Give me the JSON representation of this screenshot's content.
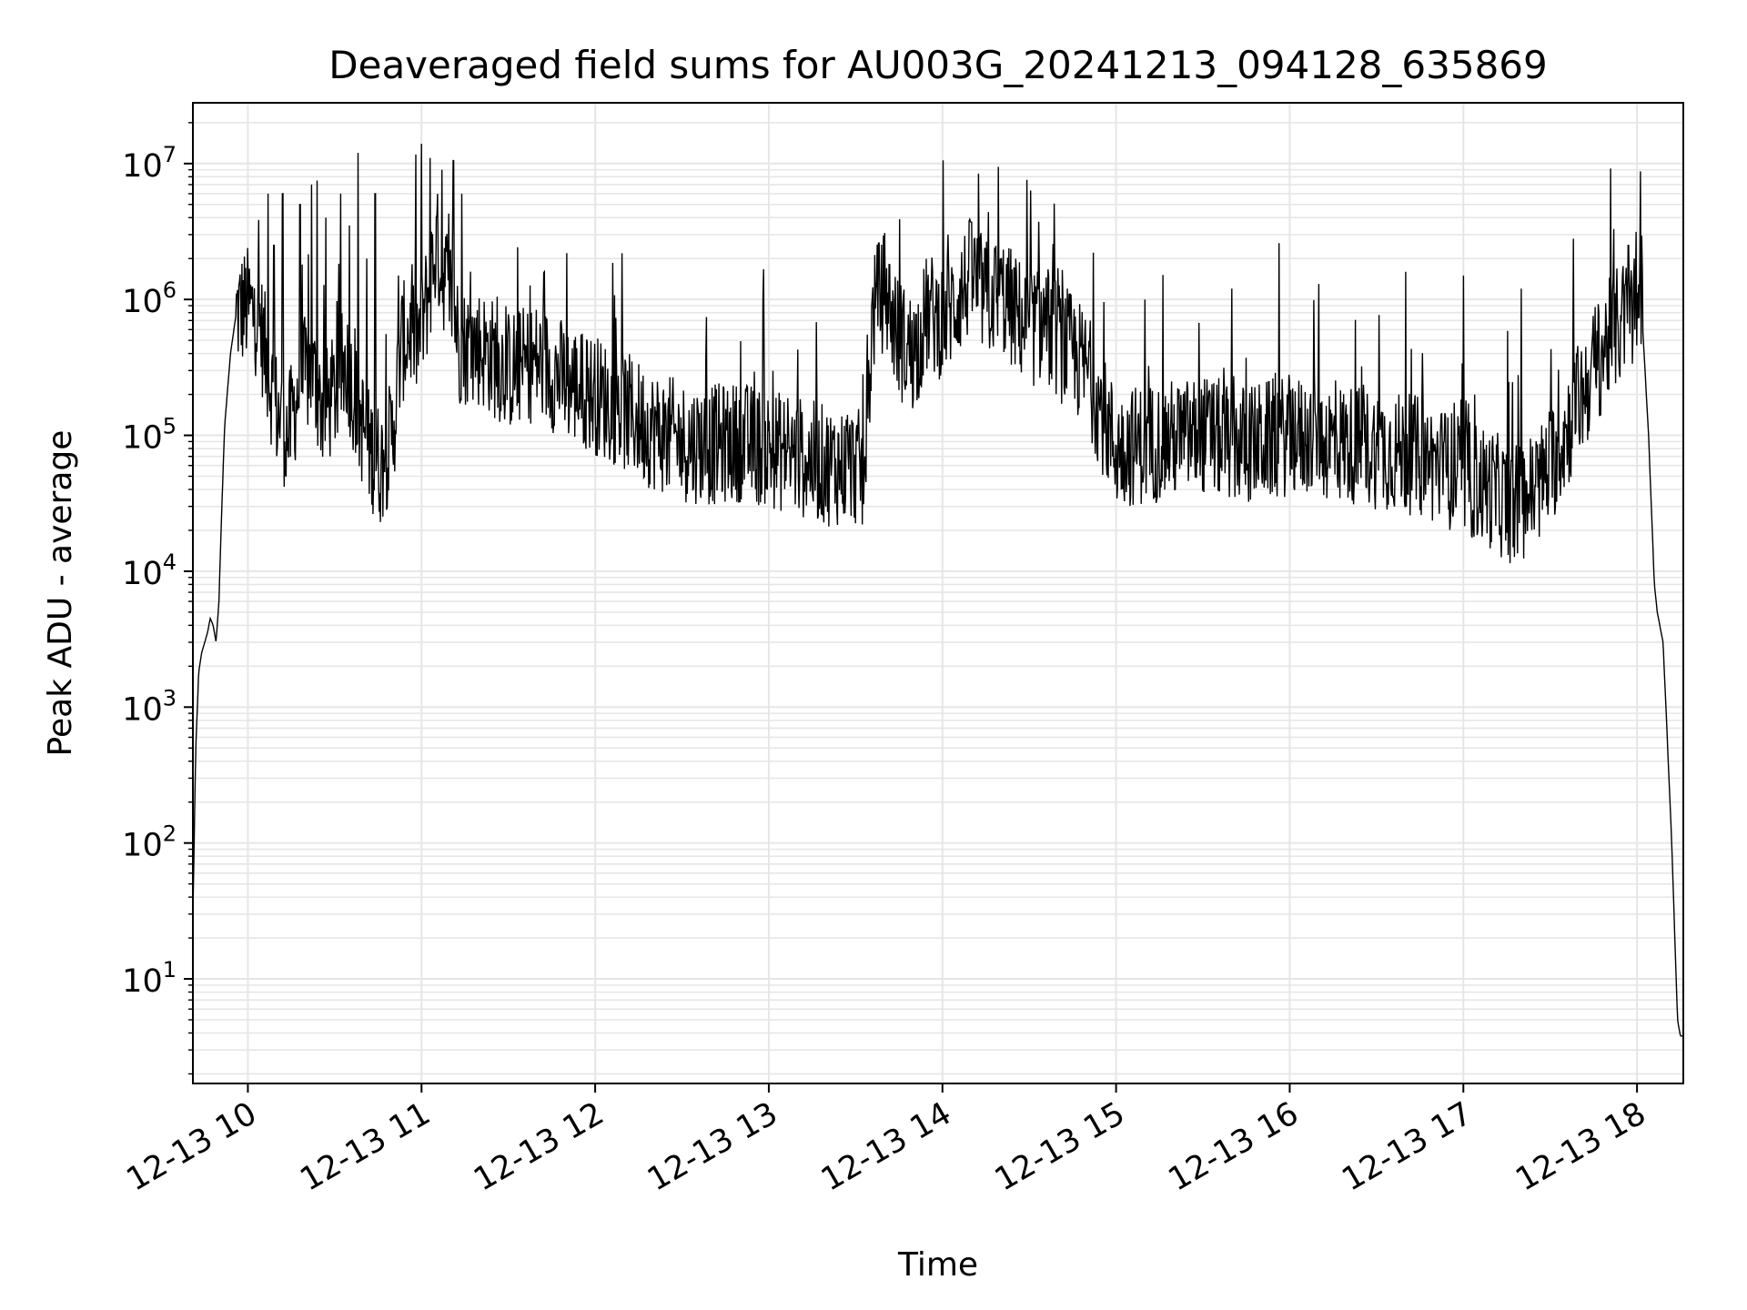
{
  "chart_data": {
    "type": "line",
    "title": "Deaveraged field sums for AU003G_20241213_094128_635869",
    "xlabel": "Time",
    "ylabel": "Peak ADU - average",
    "yscale": "log",
    "ylim": [
      1.7,
      28000000
    ],
    "xlim": [
      "2024-12-13 09:41",
      "2024-12-13 18:16"
    ],
    "grid": true,
    "line_color": "#000000",
    "grid_color": "#e6e6e6",
    "x_ticks": [
      "2024-12-13 10:00",
      "2024-12-13 11:00",
      "2024-12-13 12:00",
      "2024-12-13 13:00",
      "2024-12-13 14:00",
      "2024-12-13 15:00",
      "2024-12-13 16:00",
      "2024-12-13 17:00",
      "2024-12-13 18:00"
    ],
    "x_tick_labels": [
      "12-13 10",
      "12-13 11",
      "12-13 12",
      "12-13 13",
      "12-13 14",
      "12-13 15",
      "12-13 16",
      "12-13 17",
      "12-13 18"
    ],
    "y_ticks": [
      10,
      100,
      1000,
      10000,
      100000,
      1000000,
      10000000
    ],
    "y_tick_labels": [
      {
        "base": "10",
        "exp": "1"
      },
      {
        "base": "10",
        "exp": "2"
      },
      {
        "base": "10",
        "exp": "3"
      },
      {
        "base": "10",
        "exp": "4"
      },
      {
        "base": "10",
        "exp": "5"
      },
      {
        "base": "10",
        "exp": "6"
      },
      {
        "base": "10",
        "exp": "7"
      }
    ],
    "series": [
      {
        "points": [
          [
            "2024-12-13 09:41",
            30
          ],
          [
            "2024-12-13 09:42",
            500
          ],
          [
            "2024-12-13 09:43",
            1800
          ],
          [
            "2024-12-13 09:44",
            2500
          ],
          [
            "2024-12-13 09:46",
            3500
          ],
          [
            "2024-12-13 09:47",
            4500
          ],
          [
            "2024-12-13 09:48",
            4000
          ],
          [
            "2024-12-13 09:49",
            3000
          ],
          [
            "2024-12-13 09:50",
            6000
          ],
          [
            "2024-12-13 09:51",
            30000
          ],
          [
            "2024-12-13 09:52",
            120000
          ],
          [
            "2024-12-13 09:54",
            400000
          ],
          [
            "2024-12-13 09:56",
            800000
          ],
          [
            "2024-12-13 10:00",
            900000
          ],
          [
            "2024-12-13 10:04",
            700000
          ],
          [
            "2024-12-13 10:07",
            300000
          ],
          [
            "2024-12-13 10:10",
            150000
          ],
          [
            "2024-12-13 10:14",
            100000
          ],
          [
            "2024-12-13 10:18",
            250000
          ],
          [
            "2024-12-13 10:22",
            300000
          ],
          [
            "2024-12-13 10:26",
            150000
          ],
          [
            "2024-12-13 10:30",
            200000
          ],
          [
            "2024-12-13 10:34",
            350000
          ],
          [
            "2024-12-13 10:38",
            150000
          ],
          [
            "2024-12-13 10:42",
            80000
          ],
          [
            "2024-12-13 10:46",
            60000
          ],
          [
            "2024-12-13 10:50",
            100000
          ],
          [
            "2024-12-13 10:53",
            450000
          ],
          [
            "2024-12-13 10:56",
            600000
          ],
          [
            "2024-12-13 10:59",
            500000
          ],
          [
            "2024-12-13 11:02",
            1000000
          ],
          [
            "2024-12-13 11:05",
            2500000
          ],
          [
            "2024-12-13 11:08",
            1500000
          ],
          [
            "2024-12-13 11:11",
            1000000
          ],
          [
            "2024-12-13 11:13",
            450000
          ],
          [
            "2024-12-13 11:20",
            450000
          ],
          [
            "2024-12-13 11:30",
            300000
          ],
          [
            "2024-12-13 11:40",
            350000
          ],
          [
            "2024-12-13 11:50",
            250000
          ],
          [
            "2024-12-13 12:00",
            200000
          ],
          [
            "2024-12-13 12:10",
            150000
          ],
          [
            "2024-12-13 12:20",
            110000
          ],
          [
            "2024-12-13 12:30",
            90000
          ],
          [
            "2024-12-13 12:40",
            85000
          ],
          [
            "2024-12-13 12:50",
            90000
          ],
          [
            "2024-12-13 13:00",
            80000
          ],
          [
            "2024-12-13 13:10",
            70000
          ],
          [
            "2024-12-13 13:20",
            60000
          ],
          [
            "2024-12-13 13:30",
            60000
          ],
          [
            "2024-12-13 13:33",
            50000
          ],
          [
            "2024-12-13 13:36",
            800000
          ],
          [
            "2024-12-13 13:40",
            1200000
          ],
          [
            "2024-12-13 13:45",
            500000
          ],
          [
            "2024-12-13 13:50",
            400000
          ],
          [
            "2024-12-13 13:55",
            800000
          ],
          [
            "2024-12-13 14:00",
            700000
          ],
          [
            "2024-12-13 14:05",
            1000000
          ],
          [
            "2024-12-13 14:10",
            1500000
          ],
          [
            "2024-12-13 14:15",
            1000000
          ],
          [
            "2024-12-13 14:20",
            1100000
          ],
          [
            "2024-12-13 14:25",
            800000
          ],
          [
            "2024-12-13 14:30",
            600000
          ],
          [
            "2024-12-13 14:35",
            700000
          ],
          [
            "2024-12-13 14:40",
            500000
          ],
          [
            "2024-12-13 14:45",
            400000
          ],
          [
            "2024-12-13 14:50",
            300000
          ],
          [
            "2024-12-13 14:55",
            150000
          ],
          [
            "2024-12-13 15:00",
            80000
          ],
          [
            "2024-12-13 15:15",
            90000
          ],
          [
            "2024-12-13 15:30",
            100000
          ],
          [
            "2024-12-13 15:45",
            85000
          ],
          [
            "2024-12-13 16:00",
            100000
          ],
          [
            "2024-12-13 16:15",
            90000
          ],
          [
            "2024-12-13 16:30",
            80000
          ],
          [
            "2024-12-13 16:45",
            70000
          ],
          [
            "2024-12-13 17:00",
            50000
          ],
          [
            "2024-12-13 17:10",
            40000
          ],
          [
            "2024-12-13 17:17",
            30000
          ],
          [
            "2024-12-13 17:25",
            40000
          ],
          [
            "2024-12-13 17:30",
            60000
          ],
          [
            "2024-12-13 17:35",
            100000
          ],
          [
            "2024-12-13 17:40",
            180000
          ],
          [
            "2024-12-13 17:45",
            300000
          ],
          [
            "2024-12-13 17:50",
            500000
          ],
          [
            "2024-12-13 17:55",
            700000
          ],
          [
            "2024-12-13 18:00",
            900000
          ],
          [
            "2024-12-13 18:02",
            600000
          ],
          [
            "2024-12-13 18:04",
            100000
          ],
          [
            "2024-12-13 18:06",
            8000
          ],
          [
            "2024-12-13 18:07",
            5000
          ],
          [
            "2024-12-13 18:09",
            3000
          ],
          [
            "2024-12-13 18:10",
            1000
          ],
          [
            "2024-12-13 18:12",
            100
          ],
          [
            "2024-12-13 18:14",
            5
          ],
          [
            "2024-12-13 18:15",
            3.8
          ],
          [
            "2024-12-13 18:16",
            3.8
          ]
        ],
        "spikes": [
          [
            "2024-12-13 10:07",
            6000000
          ],
          [
            "2024-12-13 10:09",
            2500000
          ],
          [
            "2024-12-13 10:12",
            6000000
          ],
          [
            "2024-12-13 10:18",
            5000000
          ],
          [
            "2024-12-13 10:22",
            7000000
          ],
          [
            "2024-12-13 10:24",
            7500000
          ],
          [
            "2024-12-13 10:27",
            4000000
          ],
          [
            "2024-12-13 10:32",
            6000000
          ],
          [
            "2024-12-13 10:35",
            3500000
          ],
          [
            "2024-12-13 10:38",
            12000000
          ],
          [
            "2024-12-13 10:41",
            2000000
          ],
          [
            "2024-12-13 10:44",
            6000000
          ],
          [
            "2024-12-13 10:52",
            1500000
          ],
          [
            "2024-12-13 11:00",
            14000000
          ],
          [
            "2024-12-13 11:03",
            11000000
          ],
          [
            "2024-12-13 11:07",
            9000000
          ],
          [
            "2024-12-13 11:11",
            10500000
          ],
          [
            "2024-12-13 11:14",
            6000000
          ],
          [
            "2024-12-13 12:58",
            1000000
          ],
          [
            "2024-12-13 13:38",
            2600000
          ],
          [
            "2024-12-13 14:02",
            3000000
          ],
          [
            "2024-12-13 14:10",
            3700000
          ],
          [
            "2024-12-13 14:20",
            2000000
          ],
          [
            "2024-12-13 14:40",
            1700000
          ],
          [
            "2024-12-13 15:10",
            1000000
          ],
          [
            "2024-12-13 15:40",
            1200000
          ],
          [
            "2024-12-13 16:10",
            1300000
          ],
          [
            "2024-12-13 16:40",
            1600000
          ],
          [
            "2024-12-13 17:00",
            1500000
          ],
          [
            "2024-12-13 17:20",
            1200000
          ],
          [
            "2024-12-13 17:38",
            2800000
          ],
          [
            "2024-12-13 17:52",
            3300000
          ],
          [
            "2024-12-13 17:57",
            2500000
          ]
        ]
      }
    ]
  }
}
